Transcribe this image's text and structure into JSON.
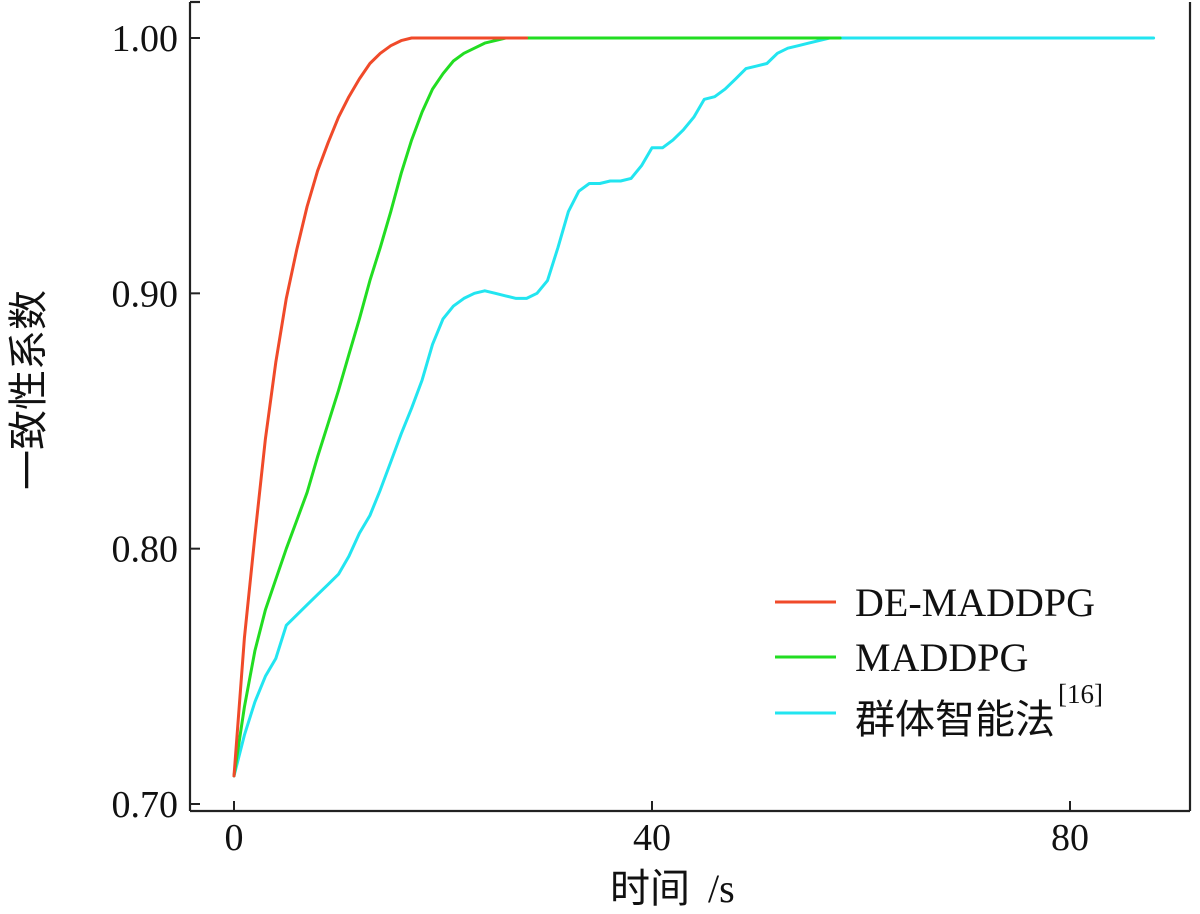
{
  "chart_data": {
    "type": "line",
    "title": "",
    "xlabel": "时间",
    "xunit": "/s",
    "ylabel": "一致性系数",
    "xlim": [
      -2,
      91
    ],
    "ylim": [
      0.695,
      1.013
    ],
    "xticks": [
      0,
      40,
      80
    ],
    "xtick_labels": [
      "0",
      "40",
      "80"
    ],
    "yticks": [
      0.7,
      0.8,
      0.9,
      1.0
    ],
    "ytick_labels": [
      "0.70",
      "0.80",
      "0.90",
      "1.00"
    ],
    "grid": false,
    "legend_position": "bottom-right",
    "series": [
      {
        "name": "DE-MADDPG",
        "label_main": "DE-MADDPG",
        "label_sup": "",
        "color": "#f04a2a",
        "x": [
          0,
          1,
          2,
          3,
          4,
          5,
          6,
          7,
          8,
          9,
          10,
          11,
          12,
          13,
          14,
          15,
          16,
          17,
          18,
          28
        ],
        "y": [
          0.711,
          0.765,
          0.805,
          0.843,
          0.873,
          0.898,
          0.917,
          0.934,
          0.948,
          0.959,
          0.969,
          0.977,
          0.984,
          0.99,
          0.994,
          0.997,
          0.999,
          1.0,
          1.0,
          1.0
        ]
      },
      {
        "name": "MADDPG",
        "label_main": "MADDPG",
        "label_sup": "",
        "color": "#22dd22",
        "x": [
          0,
          1,
          2,
          3,
          4,
          5,
          6,
          7,
          8,
          9,
          10,
          11,
          12,
          13,
          14,
          15,
          16,
          17,
          18,
          19,
          20,
          21,
          22,
          23,
          24,
          25,
          26,
          28,
          30,
          58
        ],
        "y": [
          0.711,
          0.738,
          0.76,
          0.776,
          0.788,
          0.8,
          0.811,
          0.822,
          0.836,
          0.849,
          0.862,
          0.876,
          0.89,
          0.905,
          0.918,
          0.932,
          0.947,
          0.96,
          0.971,
          0.98,
          0.986,
          0.991,
          0.994,
          0.996,
          0.998,
          0.999,
          1.0,
          1.0,
          1.0,
          1.0
        ]
      },
      {
        "name": "群体智能法[16]",
        "label_main": "群体智能法",
        "label_sup": "[16]",
        "color": "#22e5f0",
        "x": [
          0,
          1,
          2,
          3,
          4,
          5,
          6,
          7,
          8,
          9,
          10,
          11,
          12,
          13,
          14,
          15,
          16,
          17,
          18,
          19,
          20,
          21,
          22,
          23,
          24,
          25,
          26,
          27,
          28,
          29,
          30,
          31,
          32,
          33,
          34,
          35,
          36,
          37,
          38,
          39,
          40,
          41,
          42,
          43,
          44,
          45,
          46,
          47,
          48,
          49,
          50,
          51,
          52,
          53,
          54,
          55,
          56,
          57,
          58,
          59,
          70,
          80,
          88
        ],
        "y": [
          0.711,
          0.727,
          0.74,
          0.75,
          0.757,
          0.77,
          0.774,
          0.778,
          0.782,
          0.786,
          0.79,
          0.797,
          0.806,
          0.813,
          0.823,
          0.834,
          0.845,
          0.855,
          0.866,
          0.88,
          0.89,
          0.895,
          0.898,
          0.9,
          0.901,
          0.9,
          0.899,
          0.898,
          0.898,
          0.9,
          0.905,
          0.918,
          0.932,
          0.94,
          0.943,
          0.943,
          0.944,
          0.944,
          0.945,
          0.95,
          0.957,
          0.957,
          0.96,
          0.964,
          0.969,
          0.976,
          0.977,
          0.98,
          0.984,
          0.988,
          0.989,
          0.99,
          0.994,
          0.996,
          0.997,
          0.998,
          0.999,
          1.0,
          1.0,
          1.0,
          1.0,
          1.0,
          1.0
        ]
      }
    ]
  }
}
